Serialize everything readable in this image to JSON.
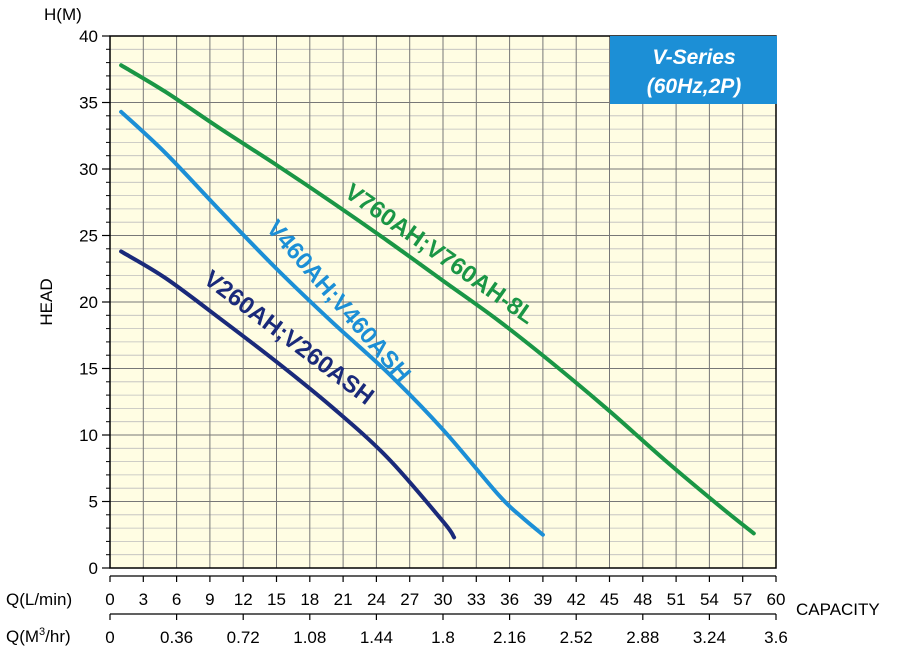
{
  "chart_data": {
    "type": "line",
    "title_box": {
      "line1": "V-Series",
      "line2": "(60Hz,2P)"
    },
    "y_unit_label": "H(M)",
    "ylabel": "HEAD",
    "xlabel": "CAPACITY",
    "x_axis_label_lmin": "Q(L/min)",
    "x_axis_label_m3hr": "Q(M³/hr)",
    "xlim": [
      0,
      60
    ],
    "ylim": [
      0,
      40
    ],
    "x_ticks_lmin": [
      "0",
      "3",
      "6",
      "9",
      "12",
      "15",
      "18",
      "21",
      "24",
      "27",
      "30",
      "33",
      "36",
      "39",
      "42",
      "45",
      "48",
      "51",
      "54",
      "57",
      "60"
    ],
    "x_ticks_m3hr": [
      "0",
      "0.36",
      "0.72",
      "1.08",
      "1.44",
      "1.8",
      "2.16",
      "2.52",
      "2.88",
      "3.24",
      "3.6"
    ],
    "y_ticks": [
      "0",
      "5",
      "10",
      "15",
      "20",
      "25",
      "30",
      "35",
      "40"
    ],
    "grid": true,
    "series": [
      {
        "name": "V760AH;V760AH-8L",
        "color": "#1a9645",
        "x": [
          1,
          5,
          10,
          15,
          20,
          25,
          30,
          35,
          40,
          45,
          50,
          55,
          58
        ],
        "y": [
          37.8,
          35.8,
          33.0,
          30.3,
          27.5,
          24.6,
          21.6,
          18.6,
          15.3,
          11.8,
          8.1,
          4.6,
          2.6
        ]
      },
      {
        "name": "V460AH;V460ASH",
        "color": "#1c8fd6",
        "x": [
          1,
          5,
          10,
          15,
          20,
          25,
          30,
          35,
          37,
          39
        ],
        "y": [
          34.3,
          31.2,
          26.8,
          22.5,
          18.5,
          14.7,
          10.4,
          5.5,
          3.9,
          2.5
        ]
      },
      {
        "name": "V260AH;V260ASH",
        "color": "#1a2a7a",
        "x": [
          1,
          5,
          10,
          15,
          20,
          25,
          30,
          31
        ],
        "y": [
          23.8,
          21.8,
          18.7,
          15.5,
          12.1,
          8.3,
          3.5,
          2.3
        ]
      }
    ]
  }
}
